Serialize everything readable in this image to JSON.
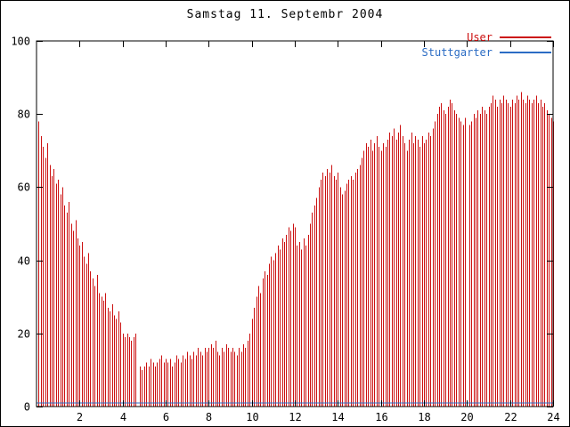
{
  "title": "Samstag 11. Septembr 2004",
  "legend": {
    "items": [
      {
        "label": "User",
        "color": "#cc1111"
      },
      {
        "label": "Stuttgarter",
        "color": "#2b6cc4"
      }
    ]
  },
  "chart_data": {
    "type": "bar",
    "title": "Samstag 11. Septembr 2004",
    "xlabel": "",
    "ylabel": "",
    "xlim": [
      0,
      24
    ],
    "ylim": [
      0,
      100
    ],
    "x_ticks": [
      2,
      4,
      6,
      8,
      10,
      12,
      14,
      16,
      18,
      20,
      22,
      24
    ],
    "y_ticks": [
      0,
      20,
      40,
      60,
      80,
      100
    ],
    "grid": false,
    "legend_position": "top-right",
    "x_start": 0.1,
    "x_step": 0.1,
    "series": [
      {
        "name": "User",
        "style": "impulses",
        "color": "#cc1111",
        "values": [
          78,
          74,
          71,
          68,
          72,
          66,
          63,
          65,
          61,
          62,
          58,
          60,
          55,
          53,
          56,
          50,
          48,
          51,
          46,
          44,
          45,
          41,
          39,
          42,
          37,
          35,
          33,
          36,
          31,
          30,
          29,
          31,
          27,
          26,
          28,
          25,
          24,
          26,
          23,
          20,
          19,
          20,
          19,
          18,
          19,
          20,
          0,
          11,
          10,
          11,
          12,
          11,
          13,
          12,
          11,
          12,
          13,
          14,
          12,
          13,
          12,
          13,
          11,
          12,
          14,
          13,
          12,
          14,
          13,
          15,
          14,
          13,
          15,
          14,
          16,
          15,
          14,
          16,
          15,
          16,
          17,
          16,
          18,
          15,
          14,
          16,
          15,
          17,
          16,
          15,
          16,
          15,
          14,
          16,
          15,
          17,
          16,
          18,
          20,
          24,
          27,
          30,
          33,
          31,
          35,
          37,
          36,
          39,
          41,
          40,
          42,
          44,
          43,
          46,
          45,
          47,
          49,
          48,
          50,
          49,
          44,
          45,
          43,
          46,
          44,
          47,
          50,
          53,
          55,
          57,
          60,
          62,
          64,
          63,
          65,
          64,
          66,
          63,
          62,
          64,
          60,
          58,
          59,
          61,
          62,
          63,
          62,
          64,
          65,
          66,
          68,
          70,
          72,
          71,
          73,
          70,
          72,
          74,
          71,
          70,
          72,
          71,
          73,
          75,
          74,
          76,
          73,
          75,
          77,
          74,
          72,
          70,
          73,
          75,
          72,
          74,
          73,
          71,
          74,
          72,
          73,
          75,
          74,
          76,
          78,
          80,
          82,
          83,
          81,
          80,
          82,
          84,
          83,
          81,
          80,
          79,
          78,
          77,
          79,
          0,
          77,
          78,
          80,
          79,
          81,
          80,
          82,
          81,
          80,
          82,
          83,
          85,
          84,
          82,
          84,
          83,
          85,
          84,
          83,
          82,
          84,
          83,
          85,
          84,
          86,
          84,
          83,
          85,
          84,
          83,
          84,
          85,
          83,
          84,
          82,
          83,
          81,
          80,
          79,
          78
        ]
      },
      {
        "name": "Stuttgarter",
        "style": "line",
        "color": "#2b6cc4",
        "constant_y": 1,
        "x_range": [
          0,
          24
        ]
      }
    ]
  }
}
